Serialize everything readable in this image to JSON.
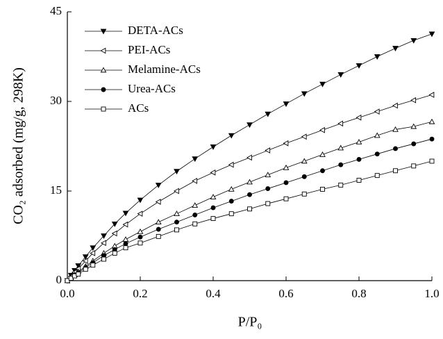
{
  "chart_data": {
    "type": "line",
    "x_label": "P/P₀",
    "y_label": "CO₂ adsorbed (mg/g, 298K)",
    "x": [
      0,
      0.01,
      0.02,
      0.03,
      0.05,
      0.07,
      0.1,
      0.13,
      0.16,
      0.2,
      0.25,
      0.3,
      0.35,
      0.4,
      0.45,
      0.5,
      0.55,
      0.6,
      0.65,
      0.7,
      0.75,
      0.8,
      0.85,
      0.9,
      0.95,
      1.0
    ],
    "series": [
      {
        "name": "DETA-ACs",
        "color": "#000000",
        "marker": "triangle-down-filled",
        "values": [
          0,
          0.9,
          1.7,
          2.5,
          4,
          5.5,
          7.5,
          9.5,
          11.3,
          13.5,
          16,
          18.3,
          20.4,
          22.4,
          24.3,
          26.1,
          27.9,
          29.6,
          31.3,
          32.9,
          34.5,
          36,
          37.5,
          38.9,
          40.2,
          41.3
        ]
      },
      {
        "name": "PEI-ACs",
        "color": "#000000",
        "marker": "triangle-left-open",
        "values": [
          0,
          0.7,
          1.4,
          2,
          3.3,
          4.6,
          6.3,
          7.9,
          9.4,
          11.2,
          13.2,
          15,
          16.7,
          18.1,
          19.4,
          20.6,
          21.8,
          23,
          24.1,
          25.2,
          26.3,
          27.3,
          28.3,
          29.3,
          30.2,
          31.1
        ]
      },
      {
        "name": "Melamine-ACs",
        "color": "#000000",
        "marker": "triangle-up-open",
        "values": [
          0,
          0.5,
          1,
          1.5,
          2.4,
          3.3,
          4.6,
          5.8,
          6.9,
          8.2,
          9.8,
          11.2,
          12.6,
          14,
          15.3,
          16.5,
          17.7,
          18.9,
          20,
          21.1,
          22.2,
          23.2,
          24.3,
          25.3,
          25.8,
          26.6
        ]
      },
      {
        "name": "Urea-ACs",
        "color": "#000000",
        "marker": "circle-filled",
        "values": [
          0,
          0.4,
          0.9,
          1.3,
          2.2,
          3,
          4.2,
          5.2,
          6.2,
          7.3,
          8.6,
          9.8,
          11,
          12.2,
          13.3,
          14.4,
          15.4,
          16.4,
          17.4,
          18.4,
          19.4,
          20.3,
          21.2,
          22.1,
          22.9,
          23.7
        ]
      },
      {
        "name": "ACs",
        "color": "#000000",
        "marker": "square-open",
        "values": [
          0,
          0.4,
          0.8,
          1.1,
          1.9,
          2.6,
          3.6,
          4.6,
          5.5,
          6.3,
          7.4,
          8.5,
          9.5,
          10.4,
          11.2,
          12,
          12.9,
          13.7,
          14.5,
          15.3,
          16,
          16.8,
          17.6,
          18.4,
          19.2,
          20
        ]
      }
    ],
    "xlim": [
      0,
      1.0
    ],
    "ylim": [
      0,
      45
    ],
    "xticks": [
      {
        "value": 0,
        "label": "0.0"
      },
      0.2,
      0.4,
      0.6,
      0.8,
      {
        "value": 1.0,
        "label": "1.0"
      }
    ],
    "yticks": [
      0,
      15,
      30,
      45
    ],
    "legend": "upper-left",
    "grid": false
  }
}
